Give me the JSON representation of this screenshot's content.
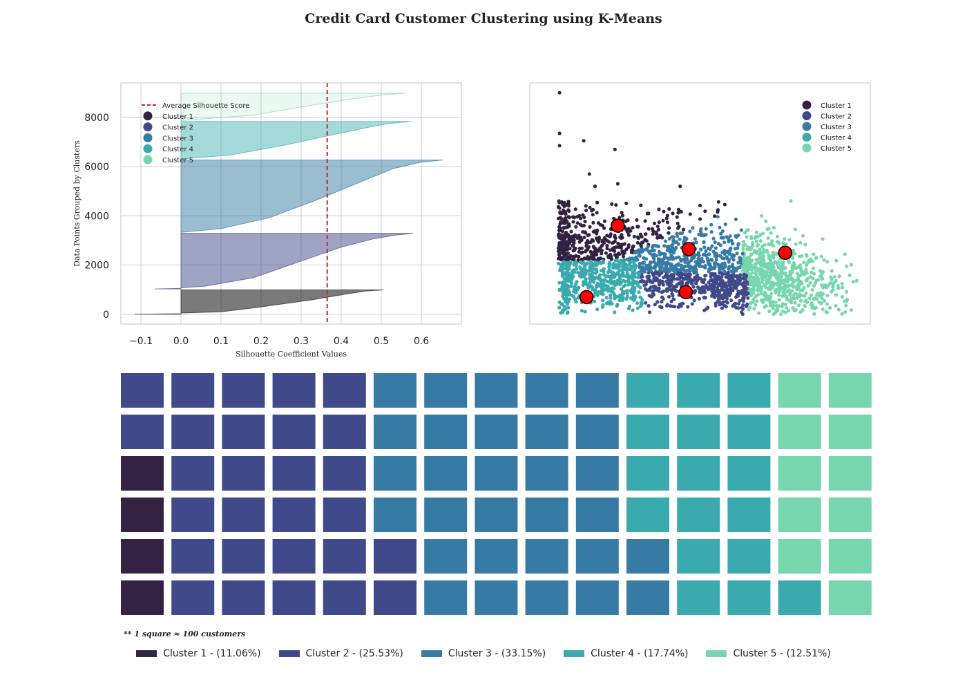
{
  "title": "Credit Card Customer Clustering using K-Means",
  "colors": {
    "c1": "#332241",
    "c2": "#404989",
    "c3": "#377ba4",
    "c4": "#3aaaae",
    "c5": "#78d6ae",
    "avg_line": "#e31a1c",
    "centroid": "#ff0000"
  },
  "chart_data": [
    {
      "type": "area",
      "name": "silhouette",
      "xlabel": "Silhouette Coefficient Values",
      "ylabel": "Data Points Grouped by Clusters",
      "xlim": [
        -0.15,
        0.7
      ],
      "ylim": [
        -400,
        9400
      ],
      "xticks": [
        -0.1,
        0.0,
        0.1,
        0.2,
        0.3,
        0.4,
        0.5,
        0.6
      ],
      "xtick_labels": [
        "−0.1",
        "0.0",
        "0.1",
        "0.2",
        "0.3",
        "0.4",
        "0.5",
        "0.6"
      ],
      "yticks": [
        0,
        2000,
        4000,
        6000,
        8000
      ],
      "ytick_labels": [
        "0",
        "2000",
        "4000",
        "6000",
        "8000"
      ],
      "average_silhouette_score": 0.365,
      "legend": [
        "Average Silhouette Score",
        "Cluster 1",
        "Cluster 2",
        "Cluster 3",
        "Cluster 4",
        "Cluster 5"
      ],
      "legend_position": "top-left",
      "grid": true,
      "series": [
        {
          "name": "Cluster 1",
          "y_start": 0,
          "y_end": 990,
          "min": -0.115,
          "max": 0.505,
          "profile": [
            [
              0.0,
              -0.115
            ],
            [
              0.02,
              0.0
            ],
            [
              0.05,
              0.0
            ],
            [
              0.1,
              0.1
            ],
            [
              0.3,
              0.2
            ],
            [
              0.6,
              0.33
            ],
            [
              0.85,
              0.42
            ],
            [
              0.95,
              0.46
            ],
            [
              1.0,
              0.505
            ]
          ]
        },
        {
          "name": "Cluster 2",
          "y_start": 1030,
          "y_end": 3290,
          "min": -0.065,
          "max": 0.58,
          "profile": [
            [
              0.0,
              -0.065
            ],
            [
              0.01,
              0.0
            ],
            [
              0.02,
              0.0
            ],
            [
              0.05,
              0.06
            ],
            [
              0.2,
              0.18
            ],
            [
              0.5,
              0.3
            ],
            [
              0.75,
              0.4
            ],
            [
              0.9,
              0.48
            ],
            [
              0.97,
              0.54
            ],
            [
              1.0,
              0.58
            ]
          ]
        },
        {
          "name": "Cluster 3",
          "y_start": 3330,
          "y_end": 6270,
          "min": 0.0,
          "max": 0.655,
          "profile": [
            [
              0.0,
              0.0
            ],
            [
              0.05,
              0.1
            ],
            [
              0.2,
              0.22
            ],
            [
              0.45,
              0.34
            ],
            [
              0.7,
              0.45
            ],
            [
              0.88,
              0.53
            ],
            [
              0.97,
              0.6
            ],
            [
              1.0,
              0.655
            ]
          ]
        },
        {
          "name": "Cluster 4",
          "y_start": 6310,
          "y_end": 7830,
          "min": 0.0,
          "max": 0.575,
          "profile": [
            [
              0.0,
              0.0
            ],
            [
              0.1,
              0.12
            ],
            [
              0.35,
              0.25
            ],
            [
              0.65,
              0.38
            ],
            [
              0.85,
              0.47
            ],
            [
              0.95,
              0.52
            ],
            [
              1.0,
              0.575
            ]
          ]
        },
        {
          "name": "Cluster 5",
          "y_start": 7870,
          "y_end": 8980,
          "min": 0.0,
          "max": 0.56,
          "profile": [
            [
              0.0,
              0.0
            ],
            [
              0.2,
              0.18
            ],
            [
              0.5,
              0.3
            ],
            [
              0.8,
              0.43
            ],
            [
              0.95,
              0.51
            ],
            [
              1.0,
              0.56
            ]
          ]
        }
      ]
    },
    {
      "type": "scatter",
      "name": "cluster-scatter",
      "xlim": [
        -0.5,
        11.5
      ],
      "ylim": [
        -0.4,
        9.4
      ],
      "grid": false,
      "legend": [
        "Cluster 1",
        "Cluster 2",
        "Cluster 3",
        "Cluster 4",
        "Cluster 5"
      ],
      "legend_position": "top-right",
      "centroids": [
        {
          "cluster": "Cluster 1",
          "x": 2.6,
          "y": 3.6
        },
        {
          "cluster": "Cluster 2",
          "x": 5.0,
          "y": 0.9
        },
        {
          "cluster": "Cluster 3",
          "x": 5.1,
          "y": 2.65
        },
        {
          "cluster": "Cluster 4",
          "x": 1.5,
          "y": 0.7
        },
        {
          "cluster": "Cluster 5",
          "x": 8.5,
          "y": 2.5
        }
      ]
    },
    {
      "type": "waffle",
      "name": "cluster-waffle",
      "rows": 6,
      "columns": 15,
      "column_counts": [
        [
          4,
          2,
          0,
          0,
          0
        ],
        [
          0,
          6,
          0,
          0,
          0
        ],
        [
          0,
          6,
          0,
          0,
          0
        ],
        [
          0,
          6,
          0,
          0,
          0
        ],
        [
          0,
          6,
          0,
          0,
          0
        ],
        [
          0,
          2,
          4,
          0,
          0
        ],
        [
          0,
          0,
          6,
          0,
          0
        ],
        [
          0,
          0,
          6,
          0,
          0
        ],
        [
          0,
          0,
          6,
          0,
          0
        ],
        [
          0,
          0,
          6,
          0,
          0
        ],
        [
          0,
          0,
          2,
          4,
          0
        ],
        [
          0,
          0,
          0,
          6,
          0
        ],
        [
          0,
          0,
          0,
          6,
          0
        ],
        [
          0,
          0,
          0,
          1,
          5
        ],
        [
          0,
          0,
          0,
          0,
          6
        ]
      ],
      "note": "** 1 square ≈ 100 customers",
      "legend": [
        "Cluster 1 - (11.06%)",
        "Cluster 2 - (25.53%)",
        "Cluster 3 - (33.15%)",
        "Cluster 4 - (17.74%)",
        "Cluster 5 - (12.51%)"
      ],
      "percentages": [
        11.06,
        25.53,
        33.15,
        17.74,
        12.51
      ]
    }
  ]
}
